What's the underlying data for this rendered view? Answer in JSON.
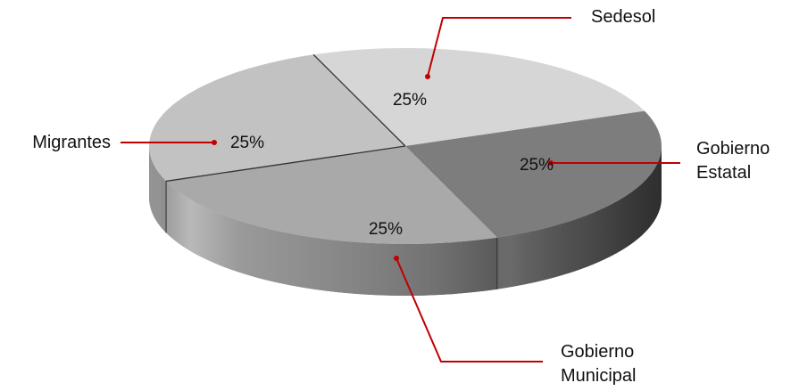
{
  "chart_data": {
    "type": "pie",
    "style": "3d",
    "slices": [
      {
        "label": "Sedesol",
        "label_lines": [
          "Sedesol"
        ],
        "value": 25,
        "display": "25%",
        "color": "#d6d6d6"
      },
      {
        "label": "Gobierno Estatal",
        "label_lines": [
          "Gobierno",
          "Estatal"
        ],
        "value": 25,
        "display": "25%",
        "color": "#7d7d7d"
      },
      {
        "label": "Gobierno Municipal",
        "label_lines": [
          "Gobierno",
          "Municipal"
        ],
        "value": 25,
        "display": "25%",
        "color": "#a9a9a9"
      },
      {
        "label": "Migrantes",
        "label_lines": [
          "Migrantes"
        ],
        "value": 25,
        "display": "25%",
        "color": "#c2c2c2"
      }
    ],
    "leader_line_color": "#c00000"
  }
}
